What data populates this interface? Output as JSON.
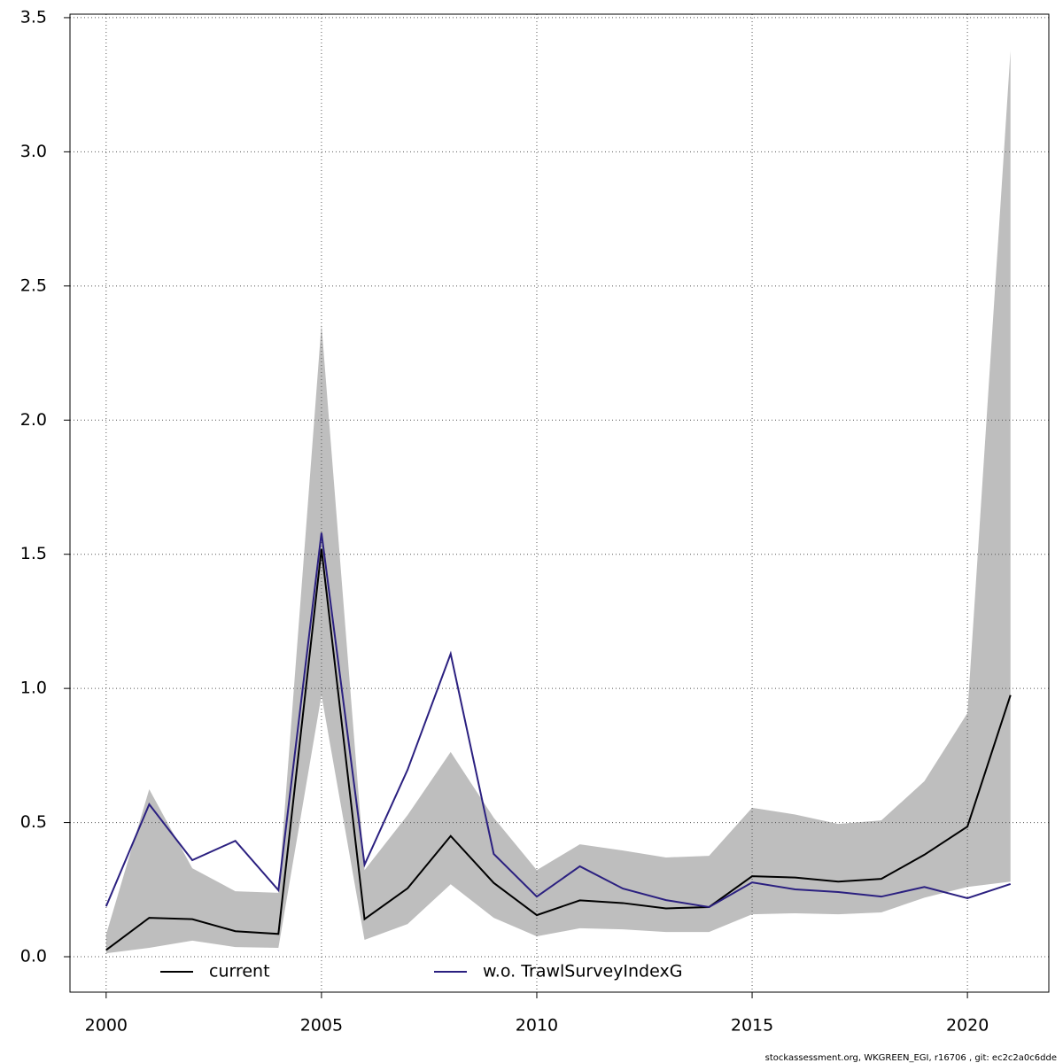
{
  "chart_data": {
    "type": "line",
    "x": [
      2000,
      2001,
      2002,
      2003,
      2004,
      2005,
      2006,
      2007,
      2008,
      2009,
      2010,
      2011,
      2012,
      2013,
      2014,
      2015,
      2016,
      2017,
      2018,
      2019,
      2020,
      2021
    ],
    "series": [
      {
        "name": "current",
        "color": "#000000",
        "values": [
          0.025,
          0.145,
          0.14,
          0.095,
          0.085,
          1.52,
          0.14,
          0.255,
          0.45,
          0.275,
          0.155,
          0.21,
          0.2,
          0.18,
          0.185,
          0.3,
          0.295,
          0.28,
          0.29,
          0.38,
          0.485,
          0.975
        ]
      },
      {
        "name": "w.o. TrawlSurveyIndexG",
        "color": "#2b2080",
        "values": [
          0.188,
          0.568,
          0.36,
          0.432,
          0.248,
          1.58,
          0.343,
          0.697,
          1.129,
          0.383,
          0.224,
          0.337,
          0.254,
          0.211,
          0.185,
          0.277,
          0.251,
          0.241,
          0.224,
          0.26,
          0.218,
          0.271
        ]
      }
    ],
    "band": {
      "color": "#bebebe",
      "lower": [
        0.013,
        0.033,
        0.06,
        0.036,
        0.033,
        0.975,
        0.063,
        0.122,
        0.27,
        0.145,
        0.076,
        0.106,
        0.102,
        0.092,
        0.092,
        0.158,
        0.162,
        0.158,
        0.165,
        0.22,
        0.26,
        0.28
      ],
      "upper": [
        0.083,
        0.624,
        0.33,
        0.244,
        0.238,
        2.357,
        0.323,
        0.528,
        0.763,
        0.518,
        0.323,
        0.419,
        0.396,
        0.37,
        0.376,
        0.555,
        0.53,
        0.495,
        0.508,
        0.654,
        0.908,
        3.377
      ]
    },
    "xlim": [
      1999.16,
      2021.89
    ],
    "ylim": [
      -0.132,
      3.513
    ],
    "xticks": [
      2000,
      2005,
      2010,
      2015,
      2020
    ],
    "yticks": [
      {
        "value": 0,
        "label": "0.0"
      },
      0.5,
      {
        "value": 1,
        "label": "1.0"
      },
      1.5,
      {
        "value": 2,
        "label": "2.0"
      },
      2.5,
      {
        "value": 3,
        "label": "3.0"
      },
      3.5
    ],
    "grid": true,
    "legend": "bottom",
    "footer": "stockassessment.org, WKGREEN_EGI, r16706 , git: ec2c2a0c6dde"
  }
}
